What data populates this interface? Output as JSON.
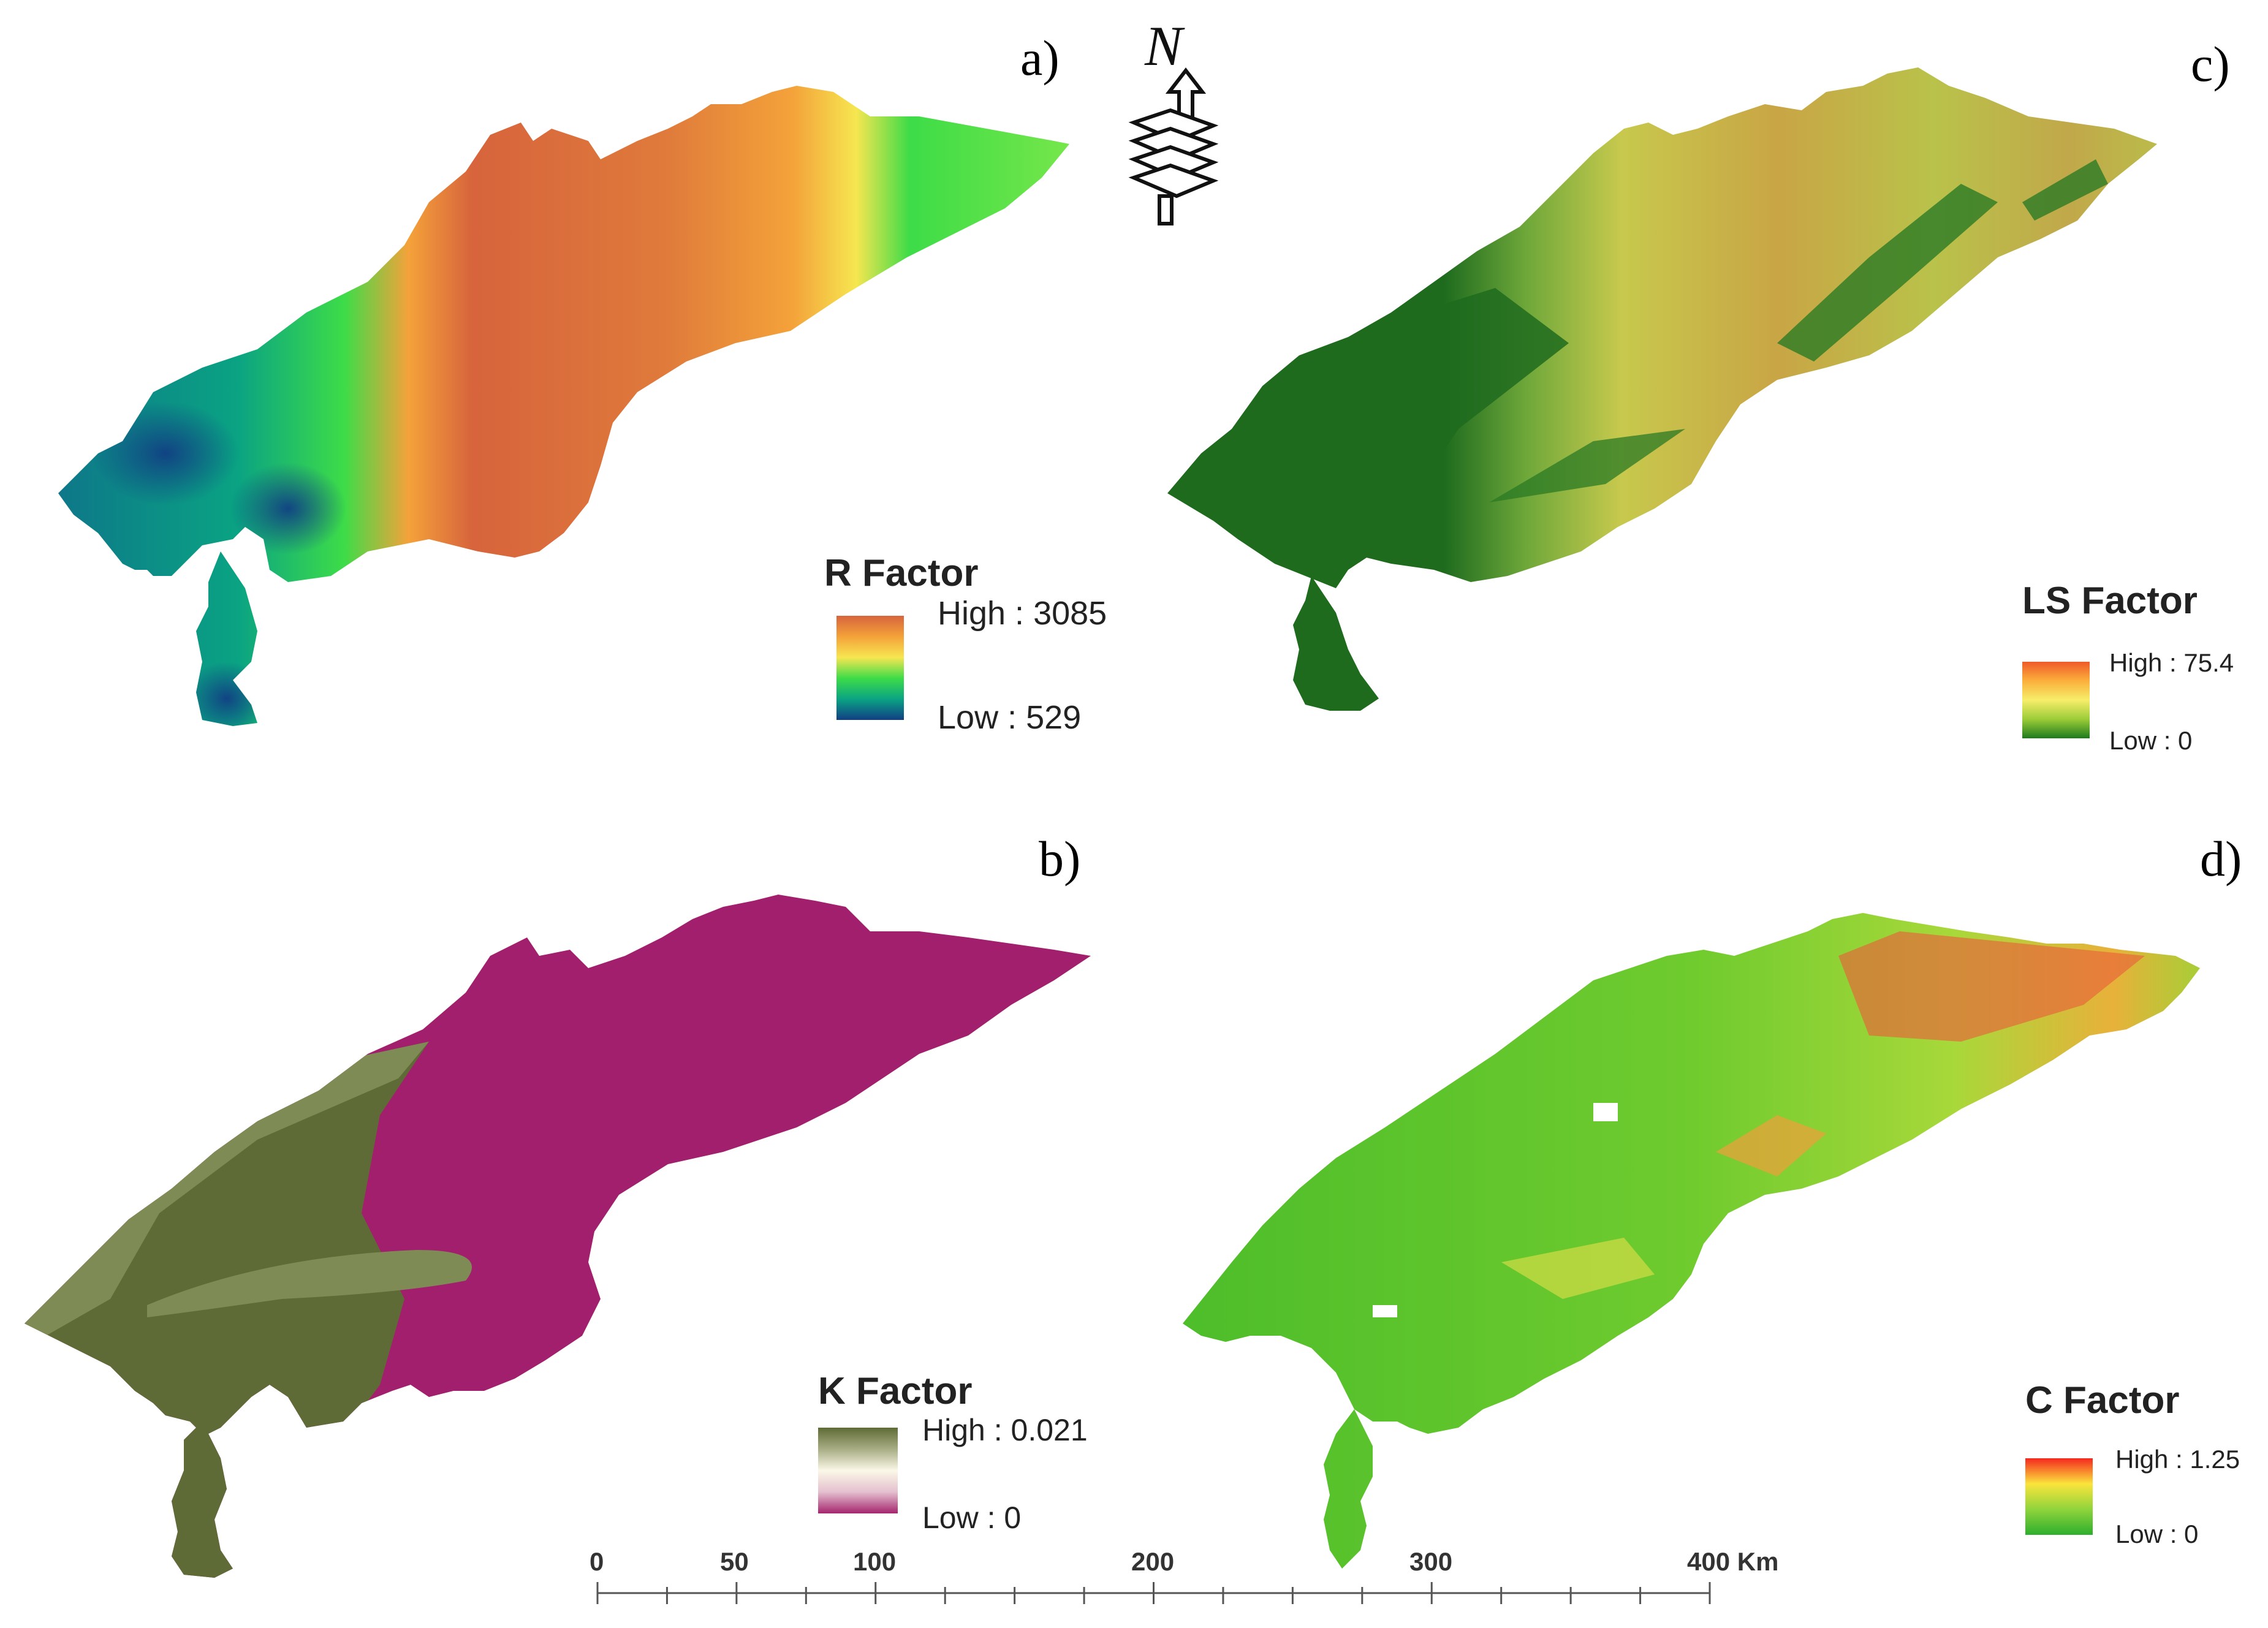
{
  "panels": {
    "a": {
      "label": "a)"
    },
    "b": {
      "label": "b)"
    },
    "c": {
      "label": "c)"
    },
    "d": {
      "label": "d)"
    }
  },
  "north_arrow": {
    "letter": "N",
    "icon": "north-arrow-icon"
  },
  "legends": {
    "r": {
      "title": "R Factor",
      "high": "High : 3085",
      "low": "Low : 529",
      "colors": [
        "#d7643c",
        "#f4a23a",
        "#f6e650",
        "#3ddc48",
        "#0aa383",
        "#113f84"
      ]
    },
    "k": {
      "title": "K Factor",
      "high": "High : 0.021",
      "low": "Low : 0",
      "colors": [
        "#5f6b36",
        "#a8ad84",
        "#fbf8e8",
        "#e4c0cf",
        "#a5256e"
      ]
    },
    "ls": {
      "title": "LS Factor",
      "high": "High : 75.4",
      "low": "Low : 0",
      "colors": [
        "#f05a2a",
        "#fbb03b",
        "#f6ee6a",
        "#9ccc39",
        "#1c7a1c"
      ]
    },
    "c": {
      "title": "C Factor",
      "high": "High : 1.25",
      "low": "Low : 0",
      "colors": [
        "#f5281e",
        "#fbe43c",
        "#8fd43c",
        "#2dae2d"
      ]
    }
  },
  "scale_bar": {
    "labels": [
      "0",
      "50",
      "100",
      "200",
      "300",
      "400 Km"
    ],
    "values_km": [
      0,
      50,
      100,
      200,
      300,
      400
    ]
  },
  "colors": {
    "k_class_dark": "#5f6b36",
    "k_class_light": "#7f8b55",
    "k_class_magenta": "#a21f6d",
    "ls_dark": "#1e6b1e",
    "c_green": "#4cbd2a"
  }
}
